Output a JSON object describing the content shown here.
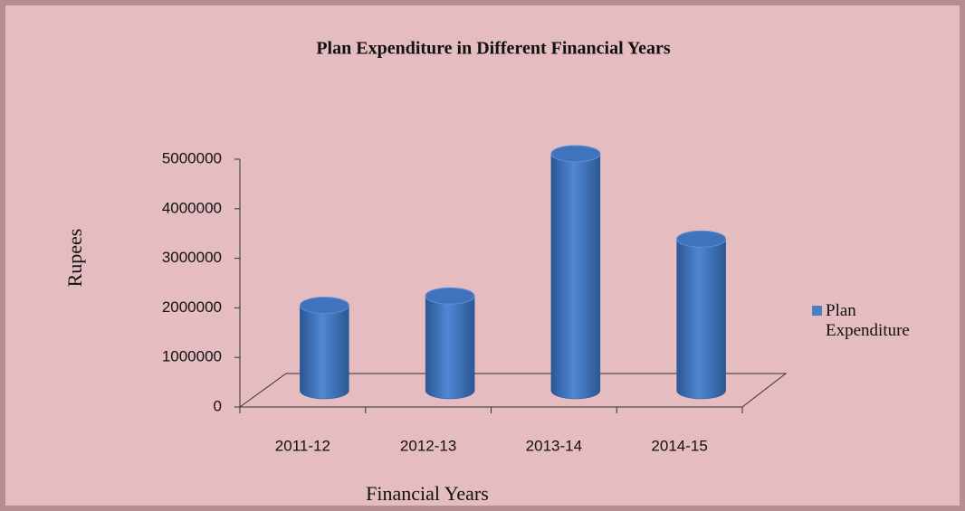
{
  "chart_data": {
    "type": "bar3d",
    "title": "Plan Expenditure in Different Financial Years",
    "x_label": "Financial Years",
    "y_label": "Rupees",
    "categories": [
      "2011-12",
      "2012-13",
      "2013-14",
      "2014-15"
    ],
    "series": [
      {
        "name": "Plan Expenditure",
        "color": "#4a7ebf",
        "values": [
          1800000,
          2000000,
          5000000,
          3200000
        ]
      }
    ],
    "ylim": [
      0,
      5000000
    ],
    "yticks": [
      0,
      1000000,
      2000000,
      3000000,
      4000000,
      5000000
    ],
    "legend": "right"
  }
}
